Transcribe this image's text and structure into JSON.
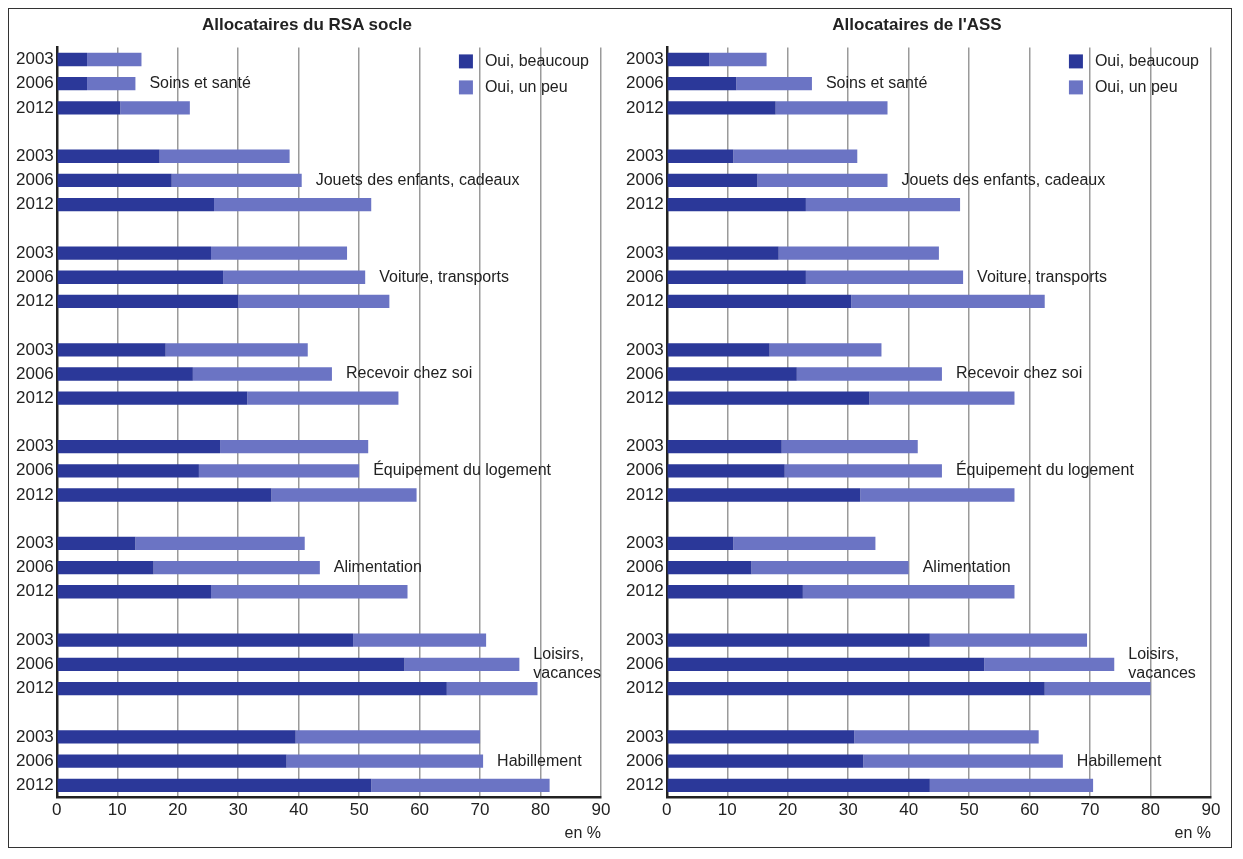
{
  "chart_data": [
    {
      "type": "bar",
      "orientation": "horizontal",
      "stacked": true,
      "title": "Allocataires du RSA socle",
      "xlabel": "en %",
      "categories": [
        "2003",
        "2006",
        "2012",
        null,
        "2003",
        "2006",
        "2012",
        null,
        "2003",
        "2006",
        "2012",
        null,
        "2003",
        "2006",
        "2012",
        null,
        "2003",
        "2006",
        "2012",
        null,
        "2003",
        "2006",
        "2012",
        null,
        "2003",
        "2006",
        "2012",
        null,
        "2003",
        "2006",
        "2012"
      ],
      "series": [
        {
          "name": "Oui, beaucoup",
          "color": "#2b3899",
          "values": [
            5,
            5,
            10.5,
            null,
            17,
            19,
            26,
            null,
            25.5,
            27.5,
            30,
            null,
            18,
            22.5,
            31.5,
            null,
            27,
            23.5,
            35.5,
            null,
            13,
            16,
            25.5,
            null,
            49,
            57.5,
            64.5,
            null,
            39.5,
            38,
            52
          ]
        },
        {
          "name": "Oui, un peu",
          "color": "#6b74c4",
          "values": [
            9,
            8,
            11.5,
            null,
            21.5,
            21.5,
            26,
            null,
            22.5,
            23.5,
            25,
            null,
            23.5,
            23,
            25,
            null,
            24.5,
            26.5,
            24,
            null,
            28,
            27.5,
            32.5,
            null,
            22,
            19,
            15,
            null,
            30.5,
            32.5,
            29.5
          ]
        }
      ],
      "annotations": [
        "Soins et santé",
        "Jouets des enfants, cadeaux",
        "Voiture, transports",
        "Recevoir chez soi",
        "Équipement du logement",
        "Alimentation",
        "Loisirs, vacances",
        "Habillement"
      ],
      "xlim": [
        0,
        90
      ],
      "xticks": [
        0,
        10,
        20,
        30,
        40,
        50,
        60,
        70,
        80,
        90
      ],
      "grid": "x",
      "legend": "top right"
    },
    {
      "type": "bar",
      "orientation": "horizontal",
      "stacked": true,
      "title": "Allocataires de l'ASS",
      "xlabel": "en %",
      "categories": [
        "2003",
        "2006",
        "2012",
        null,
        "2003",
        "2006",
        "2012",
        null,
        "2003",
        "2006",
        "2012",
        null,
        "2003",
        "2006",
        "2012",
        null,
        "2003",
        "2006",
        "2012",
        null,
        "2003",
        "2006",
        "2012",
        null,
        "2003",
        "2006",
        "2012",
        null,
        "2003",
        "2006",
        "2012"
      ],
      "series": [
        {
          "name": "Oui, beaucoup",
          "color": "#2b3899",
          "values": [
            7,
            11.5,
            18,
            null,
            11,
            15,
            23,
            null,
            18.5,
            23,
            30.5,
            null,
            17,
            21.5,
            33.5,
            null,
            19,
            19.5,
            32,
            null,
            11,
            14,
            22.5,
            null,
            43.5,
            52.5,
            62.5,
            null,
            31,
            32.5,
            43.5
          ]
        },
        {
          "name": "Oui, un peu",
          "color": "#6b74c4",
          "values": [
            9.5,
            12.5,
            18.5,
            null,
            20.5,
            21.5,
            25.5,
            null,
            26.5,
            26,
            32,
            null,
            18.5,
            24,
            24,
            null,
            22.5,
            26,
            25.5,
            null,
            23.5,
            26,
            35,
            null,
            26,
            21.5,
            17.5,
            null,
            30.5,
            33,
            27
          ]
        }
      ],
      "annotations": [
        "Soins et santé",
        "Jouets des enfants, cadeaux",
        "Voiture, transports",
        "Recevoir chez soi",
        "Équipement du logement",
        "Alimentation",
        "Loisirs, vacances",
        "Habillement"
      ],
      "xlim": [
        0,
        90
      ],
      "xticks": [
        0,
        10,
        20,
        30,
        40,
        50,
        60,
        70,
        80,
        90
      ],
      "grid": "x",
      "legend": "top right"
    }
  ]
}
